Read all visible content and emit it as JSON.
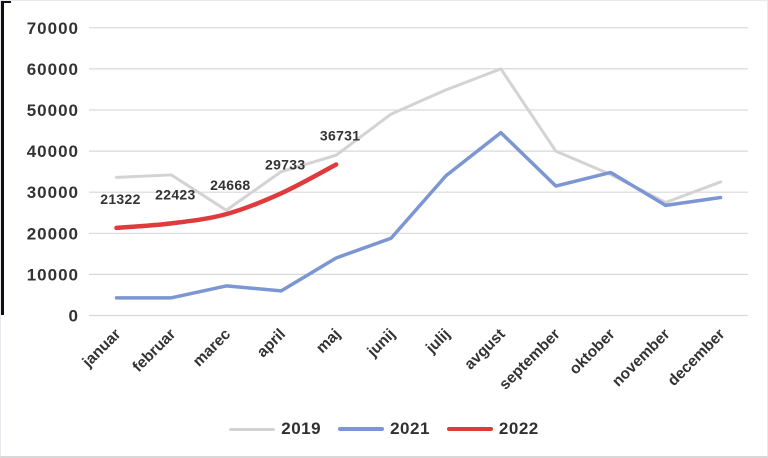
{
  "chart_data": {
    "type": "line",
    "title": "",
    "categories": [
      "januar",
      "februar",
      "marec",
      "april",
      "maj",
      "junij",
      "julij",
      "avgust",
      "september",
      "oktober",
      "november",
      "december"
    ],
    "series": [
      {
        "name": "2019",
        "color": "#d3d3d3",
        "stroke_width": 3,
        "smooth": false,
        "show_labels": false,
        "values": [
          33600,
          34200,
          25600,
          35000,
          39000,
          49000,
          54900,
          60000,
          40000,
          34300,
          27500,
          32500
        ]
      },
      {
        "name": "2021",
        "color": "#7b96d3",
        "stroke_width": 3.5,
        "smooth": false,
        "show_labels": false,
        "values": [
          4300,
          4300,
          7200,
          6000,
          14000,
          18800,
          34000,
          44500,
          31500,
          34800,
          26800,
          28700
        ]
      },
      {
        "name": "2022",
        "color": "#e03a3c",
        "stroke_width": 4.5,
        "smooth": true,
        "show_labels": true,
        "values": [
          21322,
          22423,
          24668,
          29733,
          36731
        ],
        "data_labels": [
          "21322",
          "22423",
          "24668",
          "29733",
          "36731"
        ]
      }
    ],
    "ylim": [
      0,
      70000
    ],
    "yticks": [
      0,
      10000,
      20000,
      30000,
      40000,
      50000,
      60000,
      70000
    ],
    "ytick_labels": [
      "0",
      "10000",
      "20000",
      "30000",
      "40000",
      "50000",
      "60000",
      "70000"
    ],
    "grid": "horizontal",
    "gridline_color": "#d9d9d9",
    "axis_text_color": "#333333",
    "data_label_color": "#333333",
    "legend_position": "bottom",
    "legend_entries": [
      "2019",
      "2021",
      "2022"
    ]
  }
}
